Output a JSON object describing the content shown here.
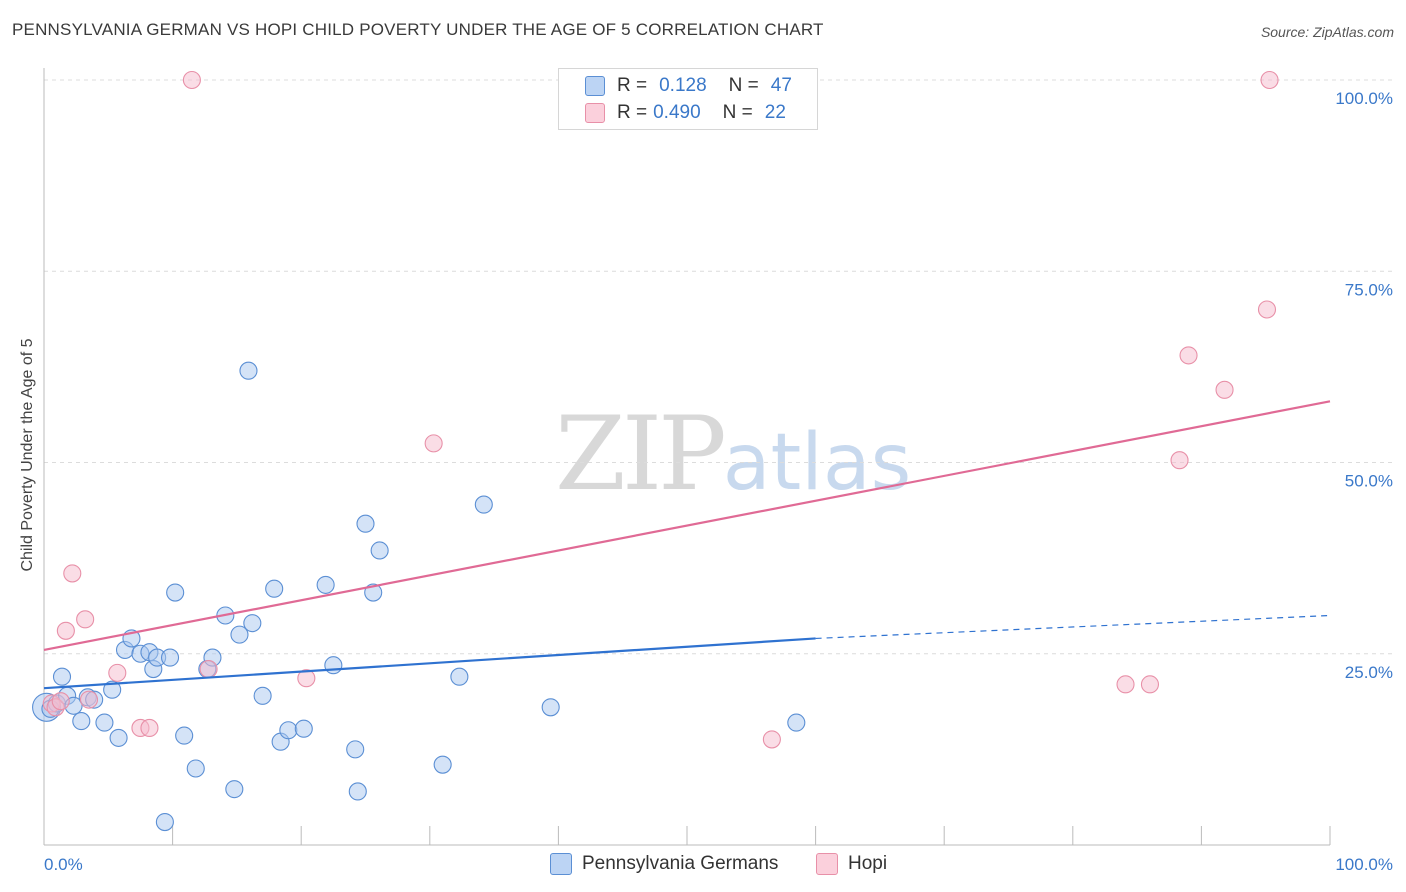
{
  "title": "PENNSYLVANIA GERMAN VS HOPI CHILD POVERTY UNDER THE AGE OF 5 CORRELATION CHART",
  "source": "Source: ZipAtlas.com",
  "watermark": {
    "zip": "ZIP",
    "atlas": "atlas"
  },
  "legend": {
    "rows": [
      {
        "r_label": "R =",
        "r_value": "0.128",
        "n_label": "N =",
        "n_value": "47"
      },
      {
        "r_label": "R =",
        "r_value": "0.490",
        "n_label": "N =",
        "n_value": "22"
      }
    ]
  },
  "colors": {
    "blue_fill": "#a9c8f0",
    "blue_stroke": "#5b8fd4",
    "blue_line": "#2f72d0",
    "pink_fill": "#f6bccd",
    "pink_stroke": "#e890a8",
    "pink_line": "#e06a95",
    "tick_label": "#3a78c9",
    "grid": "#dcdcdc"
  },
  "chart_data": {
    "type": "scatter",
    "title": "PENNSYLVANIA GERMAN VS HOPI CHILD POVERTY UNDER THE AGE OF 5 CORRELATION CHART",
    "xlabel": "",
    "ylabel": "Child Poverty Under the Age of 5",
    "xlim": [
      0,
      100
    ],
    "ylim": [
      0,
      100
    ],
    "x_tick_labels": [
      "0.0%",
      "100.0%"
    ],
    "y_ticks": [
      {
        "value": 25,
        "label": "25.0%"
      },
      {
        "value": 50,
        "label": "50.0%"
      },
      {
        "value": 75,
        "label": "75.0%"
      },
      {
        "value": 100,
        "label": "100.0%"
      }
    ],
    "grid": true,
    "legend_position": "top-center",
    "series": [
      {
        "name": "Pennsylvania Germans",
        "color": "#5b8fd4",
        "trend": {
          "x0": 0,
          "y0": 20.5,
          "x1": 60,
          "y1": 27.0,
          "dashed_to_x": 100,
          "dashed_to_y": 30.0
        },
        "points": [
          [
            0.2,
            18.0
          ],
          [
            0.5,
            17.8
          ],
          [
            1.0,
            18.5
          ],
          [
            1.4,
            22.0
          ],
          [
            1.8,
            19.5
          ],
          [
            2.3,
            18.2
          ],
          [
            2.9,
            16.2
          ],
          [
            3.4,
            19.3
          ],
          [
            3.9,
            19.0
          ],
          [
            4.7,
            16.0
          ],
          [
            5.3,
            20.3
          ],
          [
            5.8,
            14.0
          ],
          [
            6.3,
            25.5
          ],
          [
            6.8,
            27.0
          ],
          [
            7.5,
            25.0
          ],
          [
            8.2,
            25.2
          ],
          [
            8.5,
            23.0
          ],
          [
            8.8,
            24.5
          ],
          [
            9.8,
            24.5
          ],
          [
            10.2,
            33.0
          ],
          [
            10.9,
            14.3
          ],
          [
            11.8,
            10.0
          ],
          [
            12.7,
            23.0
          ],
          [
            13.1,
            24.5
          ],
          [
            14.1,
            30.0
          ],
          [
            14.8,
            7.3
          ],
          [
            15.2,
            27.5
          ],
          [
            15.9,
            62.0
          ],
          [
            16.2,
            29.0
          ],
          [
            17.0,
            19.5
          ],
          [
            17.9,
            33.5
          ],
          [
            18.4,
            13.5
          ],
          [
            19.0,
            15.0
          ],
          [
            20.2,
            15.2
          ],
          [
            21.9,
            34.0
          ],
          [
            22.5,
            23.5
          ],
          [
            24.2,
            12.5
          ],
          [
            24.4,
            7.0
          ],
          [
            25.0,
            42.0
          ],
          [
            25.6,
            33.0
          ],
          [
            26.1,
            38.5
          ],
          [
            31.0,
            10.5
          ],
          [
            32.3,
            22.0
          ],
          [
            34.2,
            44.5
          ],
          [
            39.4,
            18.0
          ],
          [
            58.5,
            16.0
          ],
          [
            9.4,
            3.0
          ]
        ]
      },
      {
        "name": "Hopi",
        "color": "#e890a8",
        "trend": {
          "x0": 0,
          "y0": 25.5,
          "x1": 100,
          "y1": 58.0
        },
        "points": [
          [
            0.6,
            18.5
          ],
          [
            0.9,
            18.0
          ],
          [
            1.3,
            18.8
          ],
          [
            1.7,
            28.0
          ],
          [
            2.2,
            35.5
          ],
          [
            3.2,
            29.5
          ],
          [
            3.5,
            19.0
          ],
          [
            5.7,
            22.5
          ],
          [
            7.5,
            15.3
          ],
          [
            8.2,
            15.3
          ],
          [
            11.5,
            100.0
          ],
          [
            12.8,
            23.0
          ],
          [
            20.4,
            21.8
          ],
          [
            30.3,
            52.5
          ],
          [
            56.6,
            13.8
          ],
          [
            84.1,
            21.0
          ],
          [
            86.0,
            21.0
          ],
          [
            88.3,
            50.3
          ],
          [
            89.0,
            64.0
          ],
          [
            91.8,
            59.5
          ],
          [
            95.1,
            70.0
          ],
          [
            95.3,
            100.0
          ]
        ]
      }
    ]
  }
}
